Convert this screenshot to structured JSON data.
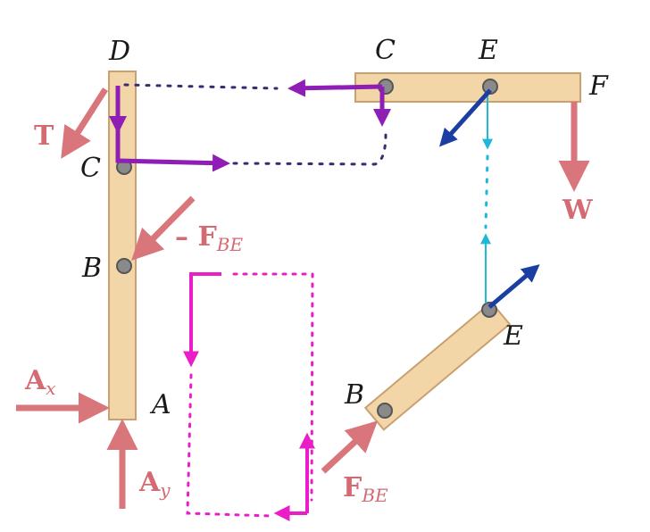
{
  "colors": {
    "wood_fill": "#f2d6a8",
    "wood_stroke": "#c9a070",
    "force_arrow": "#d9767b",
    "force_text": "#d46a72",
    "purple": "#8e1eb4",
    "magenta": "#ea1ec8",
    "cyan": "#1fb8d8",
    "navy": "#1b3ea3",
    "pin_fill": "#8a8a8a"
  },
  "points": {
    "D": "D",
    "C_left": "C",
    "B_left": "B",
    "A": "A",
    "C_top": "C",
    "E_top": "E",
    "F": "F",
    "B_link": "B",
    "E_link": "E"
  },
  "forces": {
    "T": "T",
    "W": "W",
    "neg_FBE_prefix": "– F",
    "neg_FBE_sub": "BE",
    "FBE_main": "F",
    "FBE_sub": "BE",
    "Ax_main": "A",
    "Ax_sub": "x",
    "Ay_main": "A",
    "Ay_sub": "y"
  }
}
